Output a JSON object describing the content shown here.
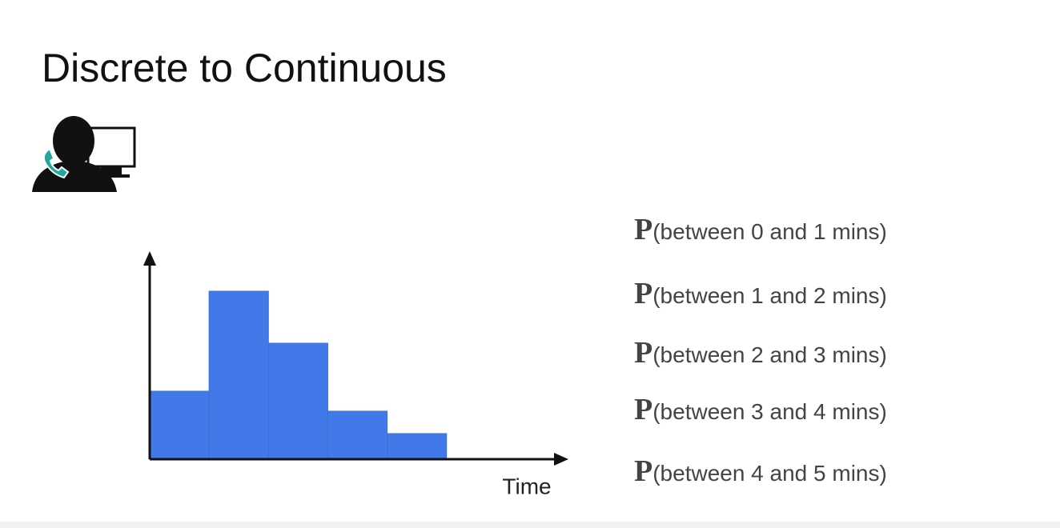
{
  "title": "Discrete to Continuous",
  "chart_data": {
    "type": "histogram",
    "x_label": "Time",
    "bins": [
      0,
      1,
      2,
      3,
      4,
      5
    ],
    "values": [
      0.85,
      2.1,
      1.45,
      0.6,
      0.32
    ],
    "color": "#4179e8",
    "xlim": [
      0,
      7
    ],
    "ylim": [
      0,
      2.56
    ]
  },
  "probability_symbol": "P",
  "events": [
    "(between 0 and 1 mins)",
    "(between 1 and 2 mins)",
    "(between 2 and 3 mins)",
    "(between 3 and 4 mins)",
    "(between 4 and 5 mins)"
  ]
}
